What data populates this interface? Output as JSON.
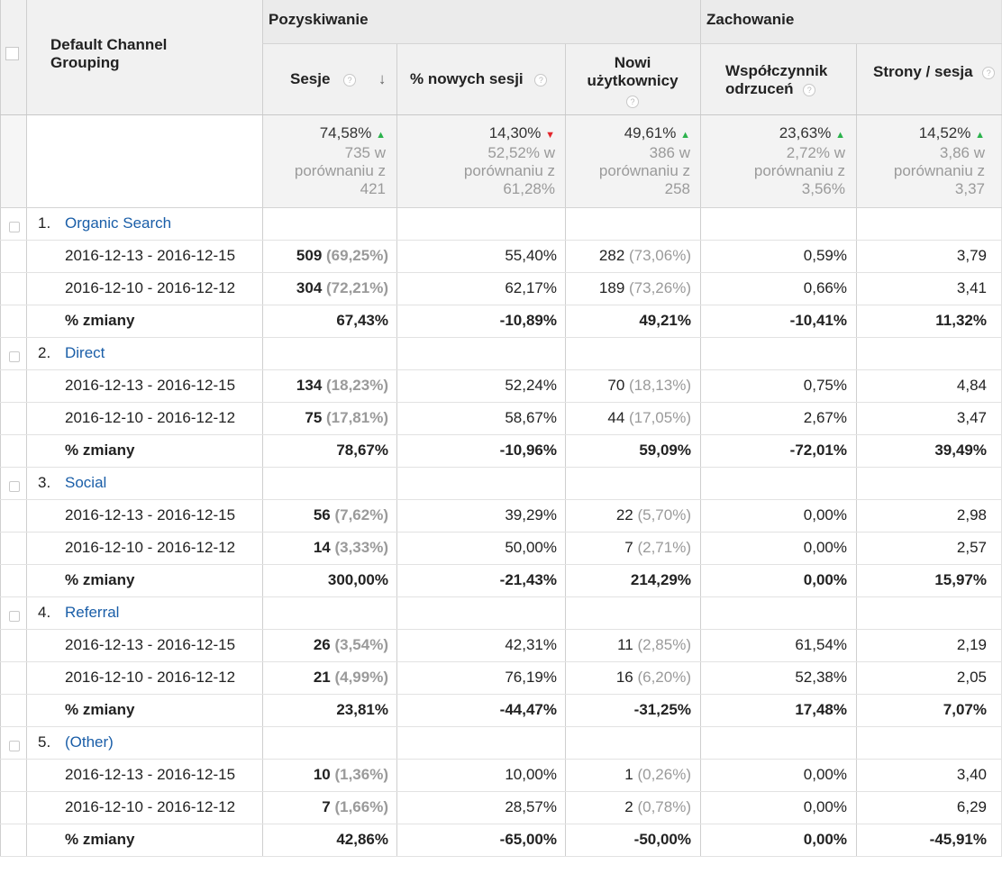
{
  "header": {
    "dimension_label": "Default Channel Grouping",
    "group_acquisition": "Pozyskiwanie",
    "group_behavior": "Zachowanie",
    "columns": [
      {
        "label": "Sesje",
        "sort": "desc"
      },
      {
        "label": "% nowych sesji"
      },
      {
        "label": "Nowi użytkownicy"
      },
      {
        "label": "Współczynnik odrzuceń"
      },
      {
        "label": "Strony / sesja"
      }
    ]
  },
  "summary": [
    {
      "value": "74,58%",
      "trend": "up",
      "line1": "735 w",
      "line2": "porównaniu z",
      "line3": "421"
    },
    {
      "value": "14,30%",
      "trend": "down",
      "line1": "52,52% w",
      "line2": "porównaniu z",
      "line3": "61,28%"
    },
    {
      "value": "49,61%",
      "trend": "up",
      "line1": "386 w",
      "line2": "porównaniu z",
      "line3": "258"
    },
    {
      "value": "23,63%",
      "trend": "up",
      "line1": "2,72% w",
      "line2": "porównaniu z",
      "line3": "3,56%"
    },
    {
      "value": "14,52%",
      "trend": "up",
      "line1": "3,86 w",
      "line2": "porównaniu z",
      "line3": "3,37"
    }
  ],
  "groups": [
    {
      "index": "1.",
      "name": "Organic Search",
      "rows": [
        {
          "label": "2016-12-13 - 2016-12-15",
          "sessions": "509",
          "sessions_pct": "(69,25%)",
          "new_sessions": "55,40%",
          "new_users": "282",
          "new_users_pct": "(73,06%)",
          "bounce": "0,59%",
          "pages": "3,79"
        },
        {
          "label": "2016-12-10 - 2016-12-12",
          "sessions": "304",
          "sessions_pct": "(72,21%)",
          "new_sessions": "62,17%",
          "new_users": "189",
          "new_users_pct": "(73,26%)",
          "bounce": "0,66%",
          "pages": "3,41"
        }
      ],
      "change": {
        "label": "% zmiany",
        "sessions": "67,43%",
        "new_sessions": "-10,89%",
        "new_users": "49,21%",
        "bounce": "-10,41%",
        "pages": "11,32%"
      }
    },
    {
      "index": "2.",
      "name": "Direct",
      "rows": [
        {
          "label": "2016-12-13 - 2016-12-15",
          "sessions": "134",
          "sessions_pct": "(18,23%)",
          "new_sessions": "52,24%",
          "new_users": "70",
          "new_users_pct": "(18,13%)",
          "bounce": "0,75%",
          "pages": "4,84"
        },
        {
          "label": "2016-12-10 - 2016-12-12",
          "sessions": "75",
          "sessions_pct": "(17,81%)",
          "new_sessions": "58,67%",
          "new_users": "44",
          "new_users_pct": "(17,05%)",
          "bounce": "2,67%",
          "pages": "3,47"
        }
      ],
      "change": {
        "label": "% zmiany",
        "sessions": "78,67%",
        "new_sessions": "-10,96%",
        "new_users": "59,09%",
        "bounce": "-72,01%",
        "pages": "39,49%"
      }
    },
    {
      "index": "3.",
      "name": "Social",
      "rows": [
        {
          "label": "2016-12-13 - 2016-12-15",
          "sessions": "56",
          "sessions_pct": "(7,62%)",
          "new_sessions": "39,29%",
          "new_users": "22",
          "new_users_pct": "(5,70%)",
          "bounce": "0,00%",
          "pages": "2,98"
        },
        {
          "label": "2016-12-10 - 2016-12-12",
          "sessions": "14",
          "sessions_pct": "(3,33%)",
          "new_sessions": "50,00%",
          "new_users": "7",
          "new_users_pct": "(2,71%)",
          "bounce": "0,00%",
          "pages": "2,57"
        }
      ],
      "change": {
        "label": "% zmiany",
        "sessions": "300,00%",
        "new_sessions": "-21,43%",
        "new_users": "214,29%",
        "bounce": "0,00%",
        "pages": "15,97%"
      }
    },
    {
      "index": "4.",
      "name": "Referral",
      "rows": [
        {
          "label": "2016-12-13 - 2016-12-15",
          "sessions": "26",
          "sessions_pct": "(3,54%)",
          "new_sessions": "42,31%",
          "new_users": "11",
          "new_users_pct": "(2,85%)",
          "bounce": "61,54%",
          "pages": "2,19"
        },
        {
          "label": "2016-12-10 - 2016-12-12",
          "sessions": "21",
          "sessions_pct": "(4,99%)",
          "new_sessions": "76,19%",
          "new_users": "16",
          "new_users_pct": "(6,20%)",
          "bounce": "52,38%",
          "pages": "2,05"
        }
      ],
      "change": {
        "label": "% zmiany",
        "sessions": "23,81%",
        "new_sessions": "-44,47%",
        "new_users": "-31,25%",
        "bounce": "17,48%",
        "pages": "7,07%"
      }
    },
    {
      "index": "5.",
      "name": "(Other)",
      "rows": [
        {
          "label": "2016-12-13 - 2016-12-15",
          "sessions": "10",
          "sessions_pct": "(1,36%)",
          "new_sessions": "10,00%",
          "new_users": "1",
          "new_users_pct": "(0,26%)",
          "bounce": "0,00%",
          "pages": "3,40"
        },
        {
          "label": "2016-12-10 - 2016-12-12",
          "sessions": "7",
          "sessions_pct": "(1,66%)",
          "new_sessions": "28,57%",
          "new_users": "2",
          "new_users_pct": "(0,78%)",
          "bounce": "0,00%",
          "pages": "6,29"
        }
      ],
      "change": {
        "label": "% zmiany",
        "sessions": "42,86%",
        "new_sessions": "-65,00%",
        "new_users": "-50,00%",
        "bounce": "0,00%",
        "pages": "-45,91%"
      }
    }
  ],
  "colors": {
    "link": "#1a5ea8",
    "trend_up": "#2bb24c",
    "trend_down": "#e3262b",
    "muted": "#9a9a9a"
  }
}
